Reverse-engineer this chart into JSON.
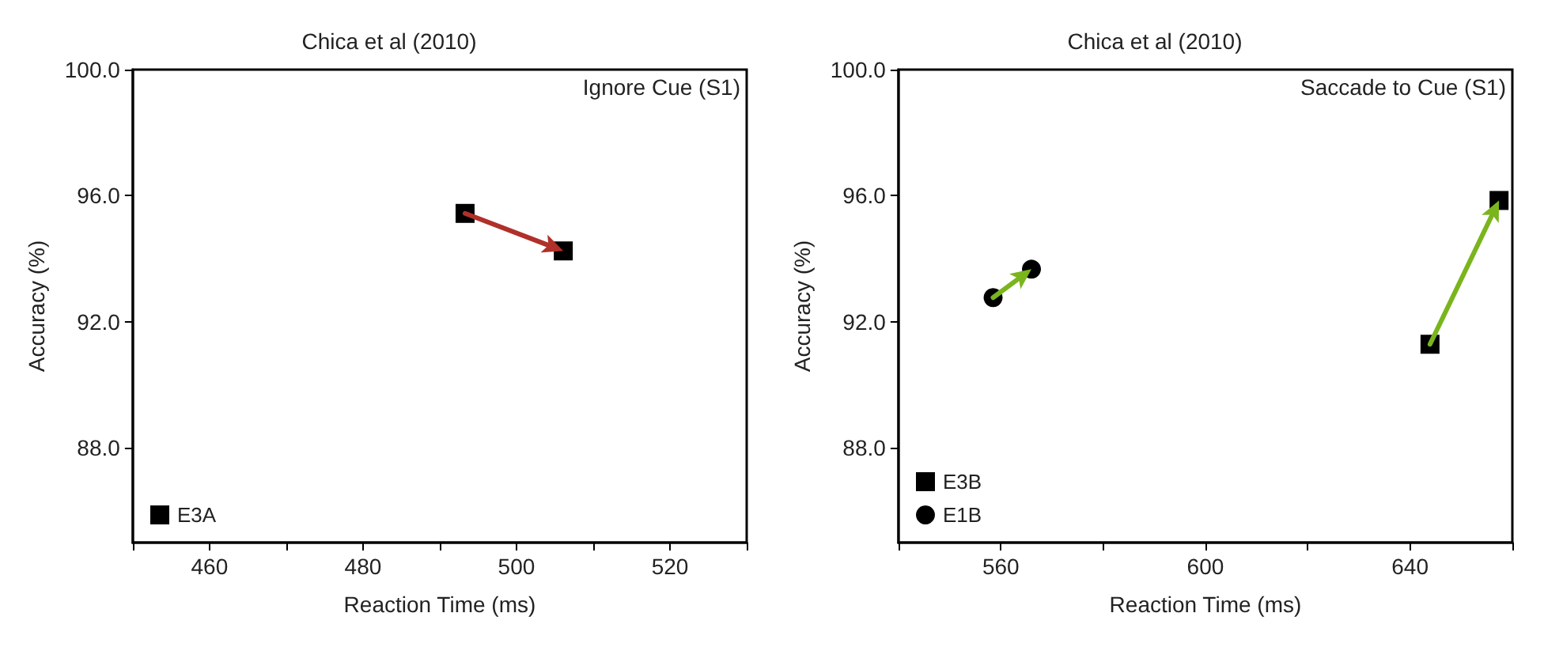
{
  "chart_data": [
    {
      "type": "scatter",
      "title": "Chica et al (2010)",
      "xlabel": "Reaction Time (ms)",
      "ylabel": "Accuracy (%)",
      "annotations": [
        "Ignore Cue (S1)"
      ],
      "xlim": [
        450,
        530
      ],
      "xticks": [
        {
          "value": 450,
          "label": null
        },
        460,
        {
          "value": 470,
          "label": null
        },
        480,
        {
          "value": 490,
          "label": null
        },
        500,
        {
          "value": 510,
          "label": null
        },
        520,
        {
          "value": 530,
          "label": null
        }
      ],
      "ylim": [
        85,
        100
      ],
      "yticks": [
        {
          "value": 88,
          "label": "88.0"
        },
        {
          "value": 92,
          "label": "92.0"
        },
        {
          "value": 96,
          "label": "96.0"
        },
        {
          "value": 100,
          "label": "100.0"
        }
      ],
      "grid": false,
      "legend": "bottom left",
      "series": [
        {
          "name": "E3A",
          "color": "#000000",
          "x": [
            493.3,
            506.1
          ],
          "values": [
            95.44,
            94.25
          ],
          "marker": "square"
        }
      ]
    },
    {
      "type": "scatter",
      "title": "Chica et al (2010)",
      "xlabel": "Reaction Time (ms)",
      "ylabel": "Accuracy (%)",
      "annotations": [
        "Saccade to Cue (S1)"
      ],
      "xlim": [
        540,
        660
      ],
      "xticks": [
        {
          "value": 540,
          "label": null
        },
        560,
        {
          "value": 580,
          "label": null
        },
        600,
        {
          "value": 620,
          "label": null
        },
        640,
        {
          "value": 660,
          "label": null
        }
      ],
      "ylim": [
        85,
        100
      ],
      "yticks": [
        {
          "value": 88,
          "label": "88.0"
        },
        {
          "value": 92,
          "label": "92.0"
        },
        {
          "value": 96,
          "label": "96.0"
        },
        {
          "value": 100,
          "label": "100.0"
        }
      ],
      "grid": false,
      "legend": "bottom left",
      "series": [
        {
          "name": "E3B",
          "color": "#000000",
          "x": [
            643.9,
            657.4
          ],
          "values": [
            91.29,
            95.85
          ],
          "marker": "square"
        },
        {
          "name": "E1B",
          "color": "#000000",
          "x": [
            558.5,
            566.0
          ],
          "values": [
            92.77,
            93.67
          ],
          "marker": "circle"
        }
      ]
    }
  ]
}
